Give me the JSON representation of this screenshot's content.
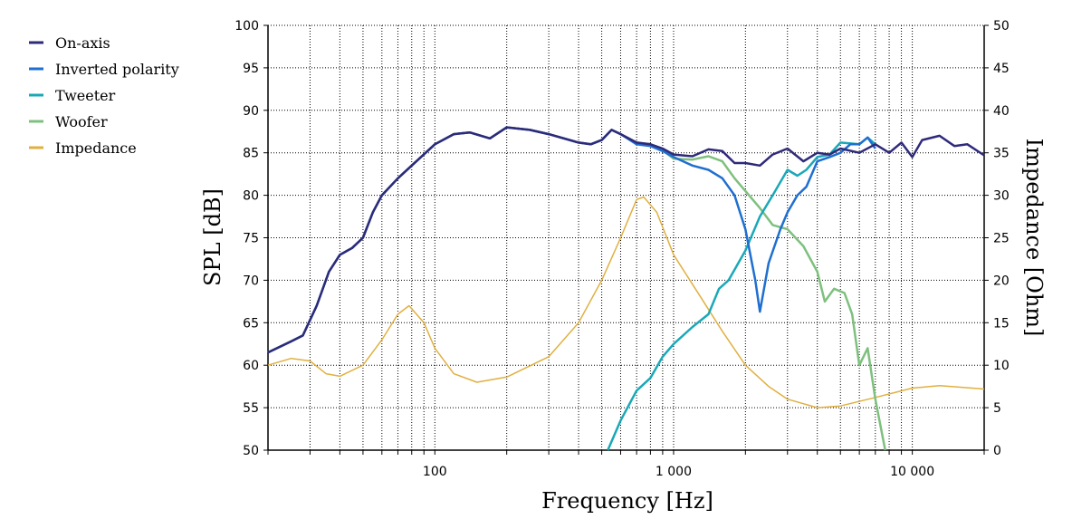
{
  "chart_data": {
    "type": "line",
    "xlabel": "Frequency [Hz]",
    "ylabel": "SPL [dB]",
    "y2label": "Impedance [Ohm]",
    "xscale": "log",
    "xlim": [
      20,
      20000
    ],
    "ylim": [
      50,
      100
    ],
    "y2lim": [
      0,
      50
    ],
    "grid": true,
    "legend_position": "top-left outside",
    "x_tick_labels": [
      {
        "value": 100,
        "label": "100"
      },
      {
        "value": 1000,
        "label": "1 000"
      },
      {
        "value": 10000,
        "label": "10 000"
      }
    ],
    "y_ticks": [
      50,
      55,
      60,
      65,
      70,
      75,
      80,
      85,
      90,
      95,
      100
    ],
    "y2_ticks": [
      0,
      5,
      10,
      15,
      20,
      25,
      30,
      35,
      40,
      45,
      50
    ],
    "series": [
      {
        "name": "On-axis",
        "color": "#2e2a7a",
        "axis": "left",
        "points": [
          [
            20,
            61.5
          ],
          [
            25,
            62.8
          ],
          [
            28,
            63.5
          ],
          [
            32,
            67
          ],
          [
            36,
            71
          ],
          [
            40,
            73
          ],
          [
            45,
            73.8
          ],
          [
            50,
            75
          ],
          [
            55,
            78
          ],
          [
            60,
            80
          ],
          [
            70,
            82
          ],
          [
            80,
            83.5
          ],
          [
            100,
            86
          ],
          [
            120,
            87.2
          ],
          [
            140,
            87.4
          ],
          [
            170,
            86.7
          ],
          [
            200,
            88
          ],
          [
            250,
            87.7
          ],
          [
            300,
            87.2
          ],
          [
            400,
            86.2
          ],
          [
            450,
            86
          ],
          [
            500,
            86.5
          ],
          [
            550,
            87.7
          ],
          [
            600,
            87.2
          ],
          [
            700,
            86.2
          ],
          [
            800,
            86
          ],
          [
            900,
            85.5
          ],
          [
            1000,
            84.8
          ],
          [
            1200,
            84.6
          ],
          [
            1400,
            85.4
          ],
          [
            1600,
            85.2
          ],
          [
            1800,
            83.8
          ],
          [
            2000,
            83.8
          ],
          [
            2300,
            83.5
          ],
          [
            2600,
            84.8
          ],
          [
            3000,
            85.5
          ],
          [
            3500,
            84
          ],
          [
            4000,
            85
          ],
          [
            4500,
            84.8
          ],
          [
            5000,
            85.5
          ],
          [
            6000,
            85
          ],
          [
            7000,
            86
          ],
          [
            8000,
            85
          ],
          [
            9000,
            86.2
          ],
          [
            10000,
            84.5
          ],
          [
            11000,
            86.5
          ],
          [
            13000,
            87
          ],
          [
            15000,
            85.8
          ],
          [
            17000,
            86
          ],
          [
            20000,
            84.7
          ]
        ]
      },
      {
        "name": "Inverted polarity",
        "color": "#1f6fd0",
        "axis": "left",
        "points": [
          [
            20,
            61.5
          ],
          [
            25,
            62.8
          ],
          [
            28,
            63.5
          ],
          [
            32,
            67
          ],
          [
            36,
            71
          ],
          [
            40,
            73
          ],
          [
            45,
            73.8
          ],
          [
            50,
            75
          ],
          [
            55,
            78
          ],
          [
            60,
            80
          ],
          [
            70,
            82
          ],
          [
            80,
            83.5
          ],
          [
            100,
            86
          ],
          [
            120,
            87.2
          ],
          [
            140,
            87.4
          ],
          [
            170,
            86.7
          ],
          [
            200,
            88
          ],
          [
            250,
            87.7
          ],
          [
            300,
            87.2
          ],
          [
            400,
            86.2
          ],
          [
            450,
            86
          ],
          [
            500,
            86.5
          ],
          [
            550,
            87.7
          ],
          [
            600,
            87.2
          ],
          [
            700,
            86
          ],
          [
            800,
            85.8
          ],
          [
            900,
            85.2
          ],
          [
            1000,
            84.5
          ],
          [
            1200,
            83.5
          ],
          [
            1400,
            83
          ],
          [
            1600,
            82
          ],
          [
            1800,
            80
          ],
          [
            2000,
            76
          ],
          [
            2200,
            70
          ],
          [
            2300,
            66.3
          ],
          [
            2500,
            72
          ],
          [
            2800,
            76
          ],
          [
            3000,
            78
          ],
          [
            3300,
            80
          ],
          [
            3600,
            81
          ],
          [
            4000,
            84
          ],
          [
            4500,
            84.5
          ],
          [
            5000,
            85
          ],
          [
            5500,
            86
          ],
          [
            6000,
            86
          ],
          [
            6500,
            86.8
          ],
          [
            7000,
            85.5
          ]
        ]
      },
      {
        "name": "Tweeter",
        "color": "#1aa8b8",
        "axis": "left",
        "points": [
          [
            530,
            50
          ],
          [
            600,
            53.5
          ],
          [
            700,
            57
          ],
          [
            800,
            58.5
          ],
          [
            900,
            61
          ],
          [
            1000,
            62.5
          ],
          [
            1200,
            64.5
          ],
          [
            1400,
            66
          ],
          [
            1550,
            69
          ],
          [
            1700,
            70
          ],
          [
            2000,
            73.5
          ],
          [
            2300,
            77.5
          ],
          [
            2600,
            80
          ],
          [
            3000,
            83
          ],
          [
            3300,
            82.3
          ],
          [
            3600,
            83
          ],
          [
            4000,
            84.5
          ],
          [
            4500,
            84.8
          ],
          [
            5000,
            86.2
          ],
          [
            6000,
            86
          ],
          [
            6500,
            86.8
          ],
          [
            7000,
            86
          ]
        ]
      },
      {
        "name": "Woofer",
        "color": "#7ec07e",
        "axis": "left",
        "points": [
          [
            20,
            61.5
          ],
          [
            25,
            62.8
          ],
          [
            28,
            63.5
          ],
          [
            32,
            67
          ],
          [
            36,
            71
          ],
          [
            40,
            73
          ],
          [
            45,
            73.8
          ],
          [
            50,
            75
          ],
          [
            55,
            78
          ],
          [
            60,
            80
          ],
          [
            70,
            82
          ],
          [
            80,
            83.5
          ],
          [
            100,
            86
          ],
          [
            120,
            87.2
          ],
          [
            140,
            87.4
          ],
          [
            170,
            86.7
          ],
          [
            200,
            88
          ],
          [
            250,
            87.7
          ],
          [
            300,
            87.2
          ],
          [
            400,
            86.2
          ],
          [
            450,
            86
          ],
          [
            500,
            86.5
          ],
          [
            550,
            87.7
          ],
          [
            600,
            87.2
          ],
          [
            700,
            86.2
          ],
          [
            800,
            86
          ],
          [
            900,
            85.3
          ],
          [
            1000,
            84.3
          ],
          [
            1200,
            84.2
          ],
          [
            1400,
            84.6
          ],
          [
            1600,
            84
          ],
          [
            1800,
            82
          ],
          [
            2000,
            80.5
          ],
          [
            2300,
            78.5
          ],
          [
            2600,
            76.5
          ],
          [
            3000,
            76
          ],
          [
            3500,
            74
          ],
          [
            4000,
            71
          ],
          [
            4300,
            67.5
          ],
          [
            4700,
            69
          ],
          [
            5200,
            68.5
          ],
          [
            5600,
            66
          ],
          [
            6000,
            60
          ],
          [
            6500,
            62
          ],
          [
            7000,
            56
          ],
          [
            7700,
            50
          ]
        ]
      },
      {
        "name": "Impedance",
        "color": "#e0b040",
        "axis": "right",
        "points": [
          [
            20,
            10
          ],
          [
            25,
            10.8
          ],
          [
            30,
            10.5
          ],
          [
            35,
            9
          ],
          [
            40,
            8.7
          ],
          [
            50,
            10
          ],
          [
            60,
            13
          ],
          [
            70,
            16
          ],
          [
            78,
            17
          ],
          [
            90,
            15
          ],
          [
            100,
            12
          ],
          [
            120,
            9
          ],
          [
            150,
            8
          ],
          [
            200,
            8.6
          ],
          [
            300,
            11
          ],
          [
            400,
            15
          ],
          [
            500,
            20
          ],
          [
            600,
            25
          ],
          [
            700,
            29.5
          ],
          [
            750,
            29.8
          ],
          [
            850,
            28
          ],
          [
            1000,
            23
          ],
          [
            1300,
            18
          ],
          [
            1600,
            14
          ],
          [
            2000,
            10
          ],
          [
            2500,
            7.5
          ],
          [
            3000,
            6
          ],
          [
            4000,
            5
          ],
          [
            5000,
            5.2
          ],
          [
            7000,
            6.2
          ],
          [
            10000,
            7.3
          ],
          [
            13000,
            7.6
          ],
          [
            20000,
            7.2
          ]
        ]
      }
    ]
  }
}
